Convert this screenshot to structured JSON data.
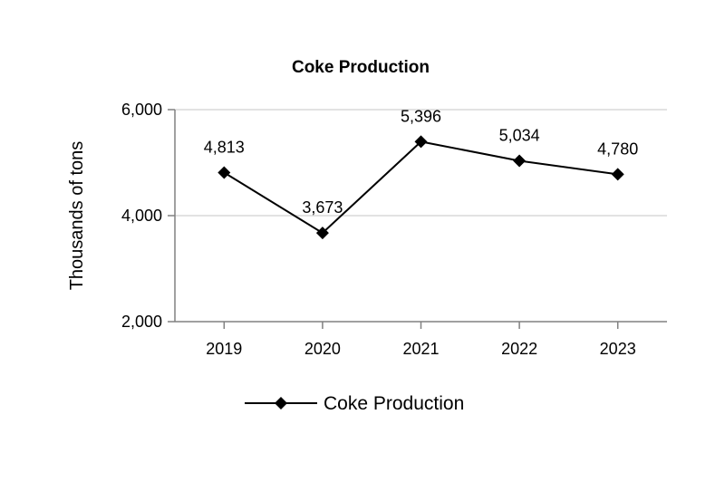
{
  "chart_data": {
    "type": "line",
    "title": "Coke Production",
    "xlabel": "",
    "ylabel": "Thousands of tons",
    "categories": [
      "2019",
      "2020",
      "2021",
      "2022",
      "2023"
    ],
    "series": [
      {
        "name": "Coke Production",
        "values": [
          4813,
          3673,
          5396,
          5034,
          4780
        ],
        "labels": [
          "4,813",
          "3,673",
          "5,396",
          "5,034",
          "4,780"
        ],
        "color": "#000000",
        "marker": "diamond"
      }
    ],
    "ylim": [
      2000,
      6000
    ],
    "yticks": [
      2000,
      4000,
      6000
    ],
    "ytick_labels": [
      "2,000",
      "4,000",
      "6,000"
    ],
    "grid": true,
    "grid_color": "#d9d9d9",
    "axis_color": "#808080",
    "legend_position": "bottom"
  }
}
